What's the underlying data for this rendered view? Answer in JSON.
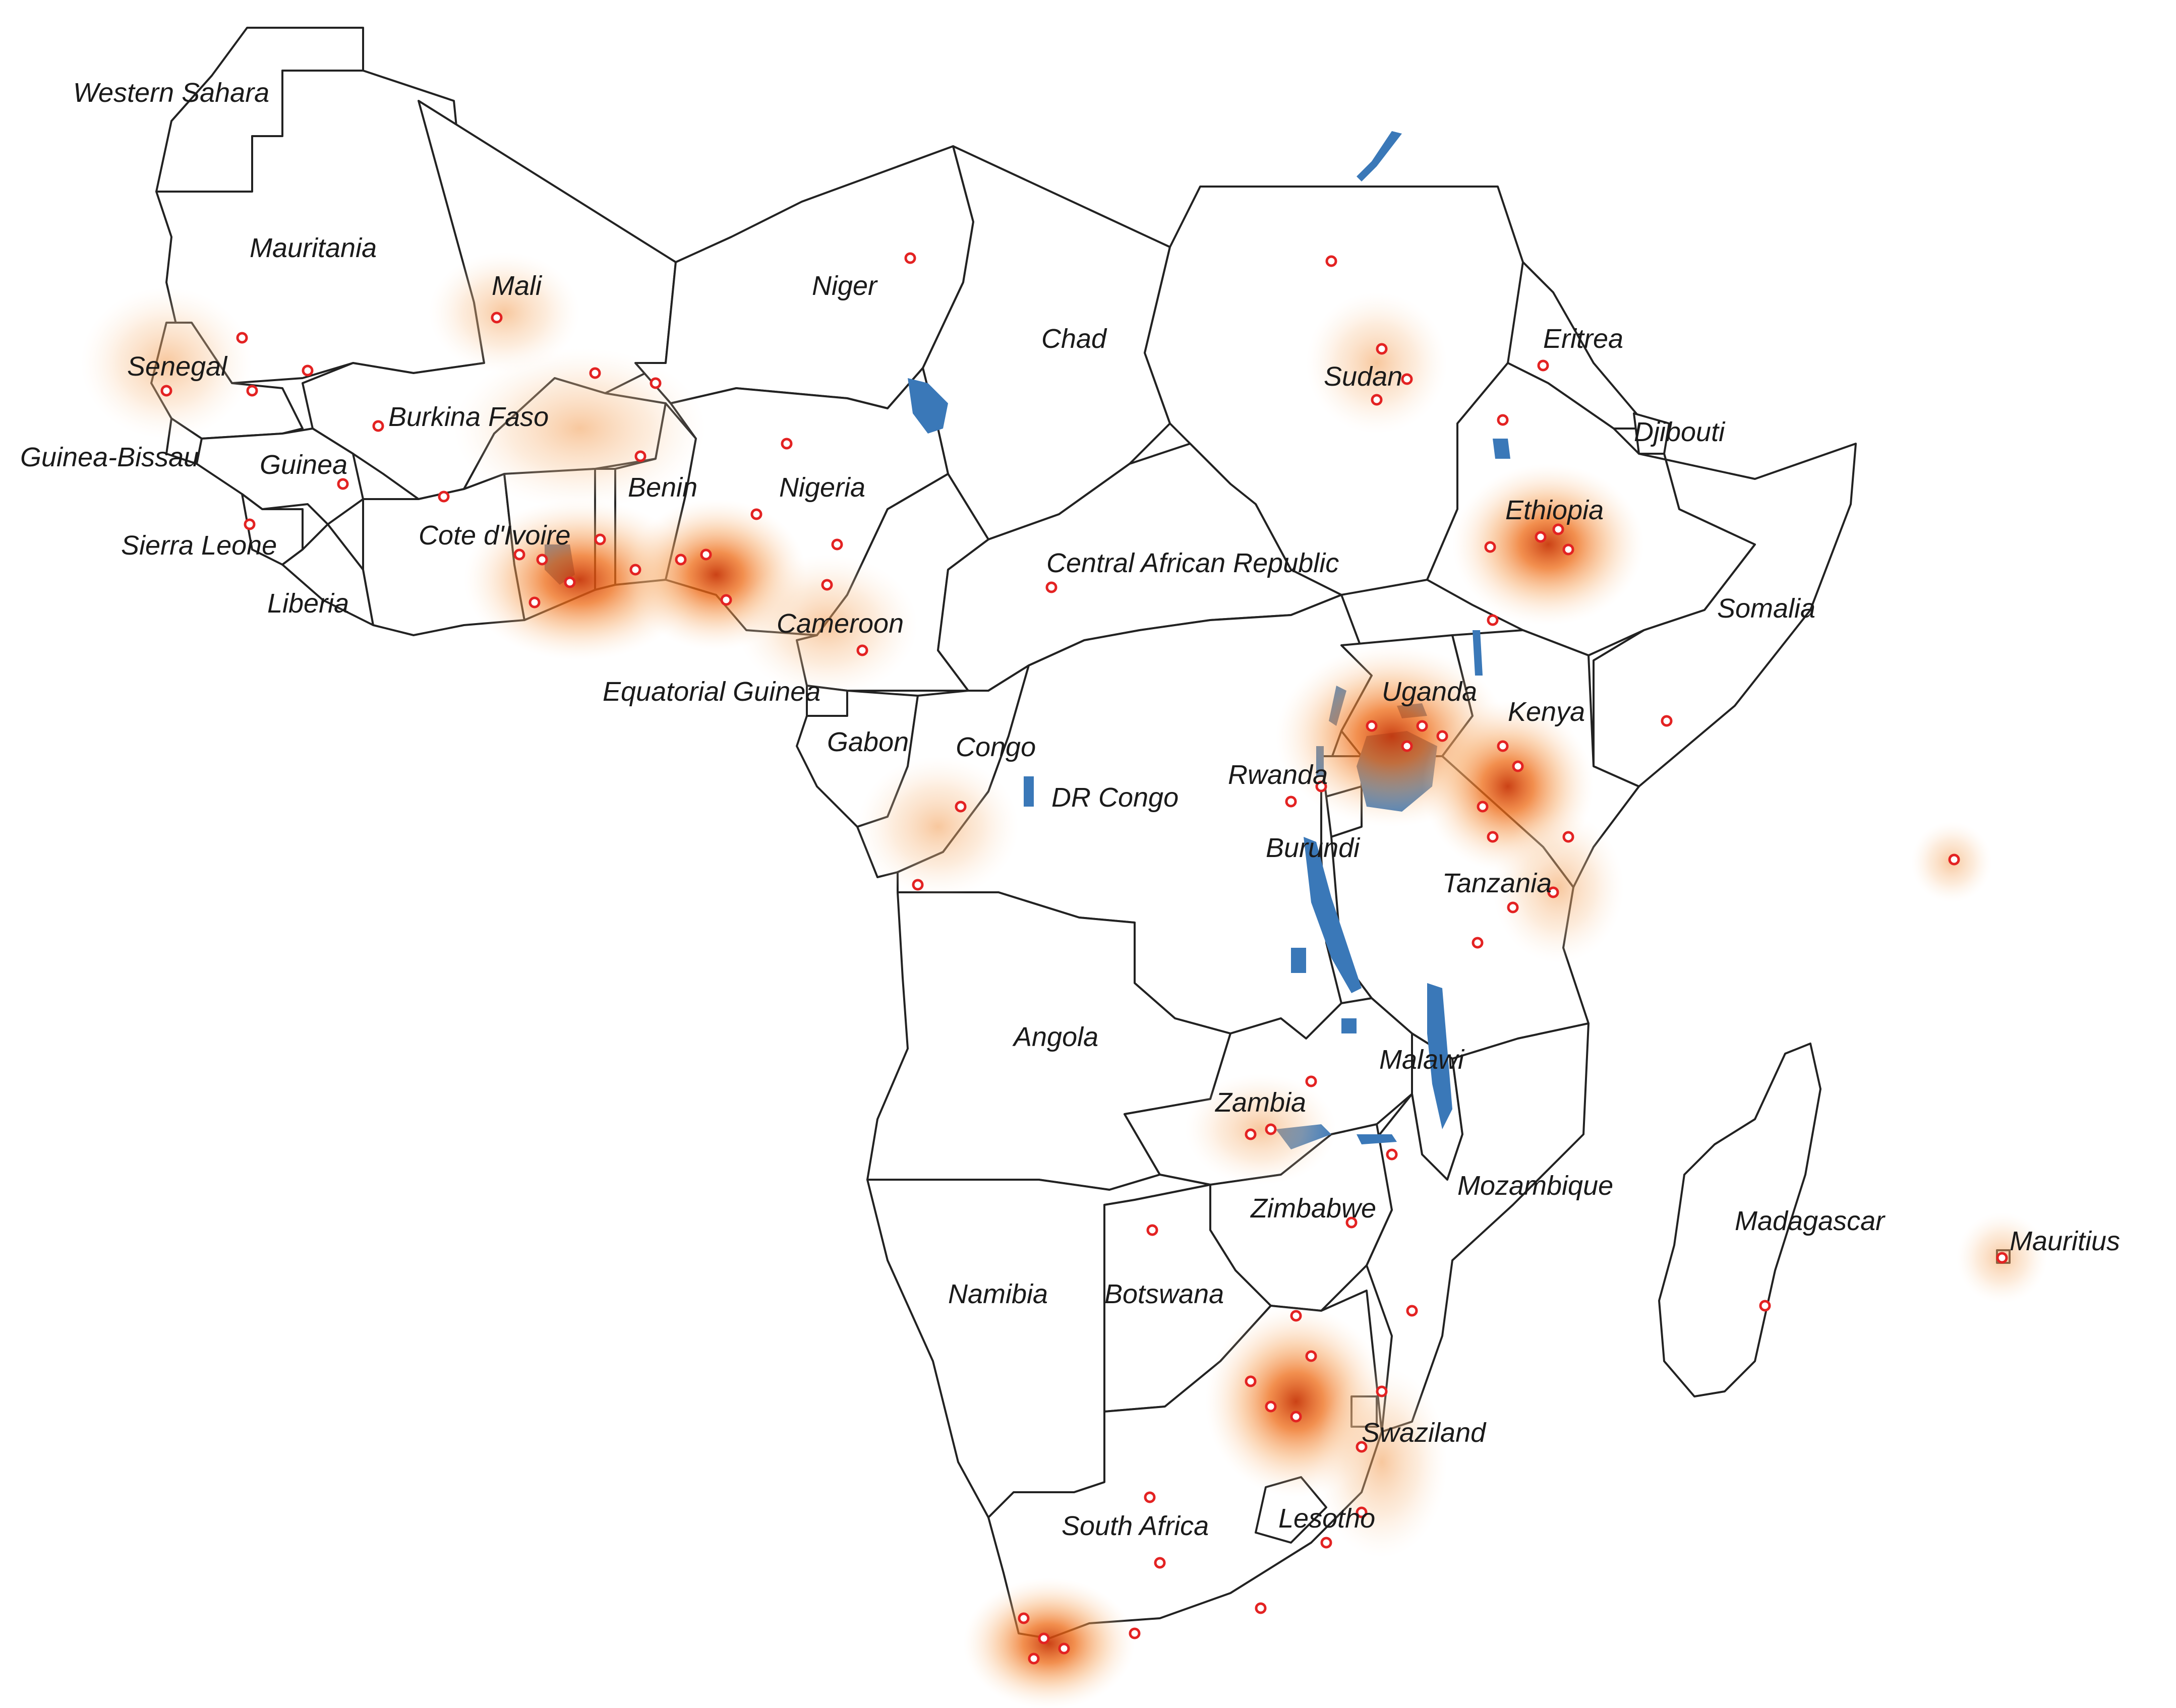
{
  "labels": {
    "western_sahara": "Western Sahara",
    "mauritania": "Mauritania",
    "mali": "Mali",
    "niger": "Niger",
    "chad": "Chad",
    "sudan": "Sudan",
    "eritrea": "Eritrea",
    "djibouti": "Djibouti",
    "ethiopia": "Ethiopia",
    "somalia": "Somalia",
    "senegal": "Senegal",
    "guinea_bissau": "Guinea-Bissau",
    "guinea": "Guinea",
    "burkina_faso": "Burkina Faso",
    "sierra_leone": "Sierra Leone",
    "liberia": "Liberia",
    "cote_divoire": "Cote d'Ivoire",
    "benin": "Benin",
    "nigeria": "Nigeria",
    "cameroon": "Cameroon",
    "central_african_republic": "Central African Republic",
    "equatorial_guinea": "Equatorial Guinea",
    "gabon": "Gabon",
    "congo": "Congo",
    "dr_congo": "DR Congo",
    "uganda": "Uganda",
    "kenya": "Kenya",
    "rwanda": "Rwanda",
    "burundi": "Burundi",
    "tanzania": "Tanzania",
    "angola": "Angola",
    "zambia": "Zambia",
    "malawi": "Malawi",
    "mozambique": "Mozambique",
    "zimbabwe": "Zimbabwe",
    "madagascar": "Madagascar",
    "mauritius": "Mauritius",
    "namibia": "Namibia",
    "botswana": "Botswana",
    "swaziland": "Swaziland",
    "lesotho": "Lesotho",
    "south_africa": "South Africa"
  },
  "colors": {
    "land_fill": "#ffffff",
    "border": "#222222",
    "water": "#3a78b8",
    "site_marker": "#e32222",
    "density_low": "#fde3c8",
    "density_mid": "#f59a3c",
    "density_high": "#c8380a"
  }
}
